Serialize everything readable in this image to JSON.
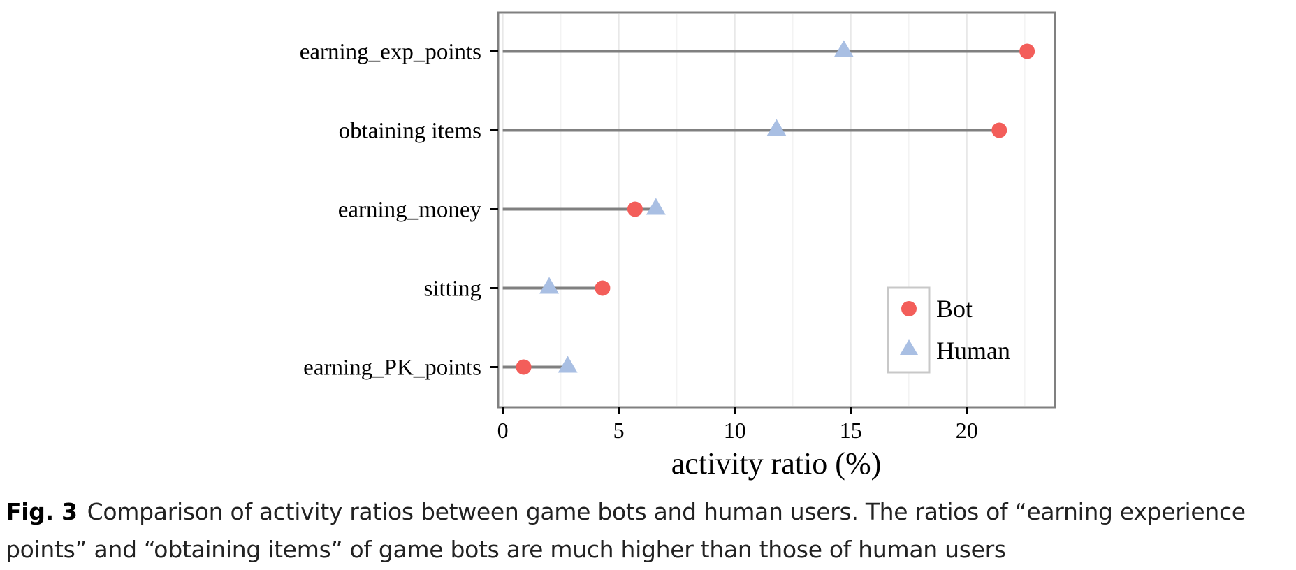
{
  "chart_data": {
    "type": "dot",
    "categories": [
      "earning_exp_points",
      "obtaining items",
      "earning_money",
      "sitting",
      "earning_PK_points"
    ],
    "series": [
      {
        "name": "Bot",
        "values": [
          22.6,
          21.4,
          5.7,
          4.3,
          0.9
        ],
        "color": "#f35e5a",
        "marker": "circle"
      },
      {
        "name": "Human",
        "values": [
          14.7,
          11.8,
          6.6,
          2.0,
          2.8
        ],
        "color": "#a9bfe3",
        "marker": "triangle"
      }
    ],
    "xlabel": "activity ratio (%)",
    "xlim": [
      -0.2,
      23.8
    ],
    "xticks": [
      0,
      5,
      10,
      15,
      20
    ],
    "grid": true,
    "legend_position": "bottom-right"
  },
  "caption": {
    "label": "Fig. 3",
    "text": "Comparison of activity ratios between game bots and human users. The ratios of “earning experience points” and “obtaining items” of game bots are much higher than those of human users"
  }
}
